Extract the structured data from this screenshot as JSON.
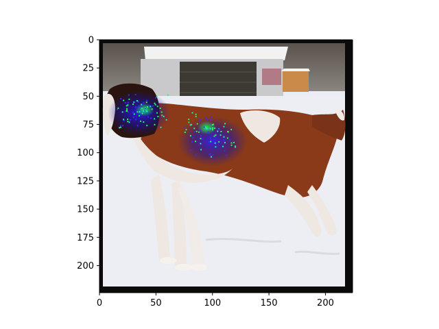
{
  "chart_data": {
    "type": "heatmap",
    "title": "",
    "xlabel": "",
    "ylabel": "",
    "xlim": [
      0,
      224
    ],
    "ylim": [
      224,
      0
    ],
    "x_ticks": [
      0,
      50,
      100,
      150,
      200
    ],
    "y_ticks": [
      0,
      25,
      50,
      75,
      100,
      125,
      150,
      175,
      200
    ],
    "image_content": "Saint Bernard dog standing in snow in front of a shed, overlaid with a saliency map",
    "saliency_regions": [
      {
        "x": 35,
        "y": 65,
        "intensity": 0.9,
        "color": "#1a3cff"
      },
      {
        "x": 100,
        "y": 90,
        "intensity": 1.0,
        "color": "#3b2bff"
      },
      {
        "x": 95,
        "y": 78,
        "intensity": 0.6,
        "color": "#12d04a"
      },
      {
        "x": 40,
        "y": 62,
        "intensity": 0.6,
        "color": "#11e04c"
      }
    ],
    "grid": false,
    "legend": "none"
  }
}
